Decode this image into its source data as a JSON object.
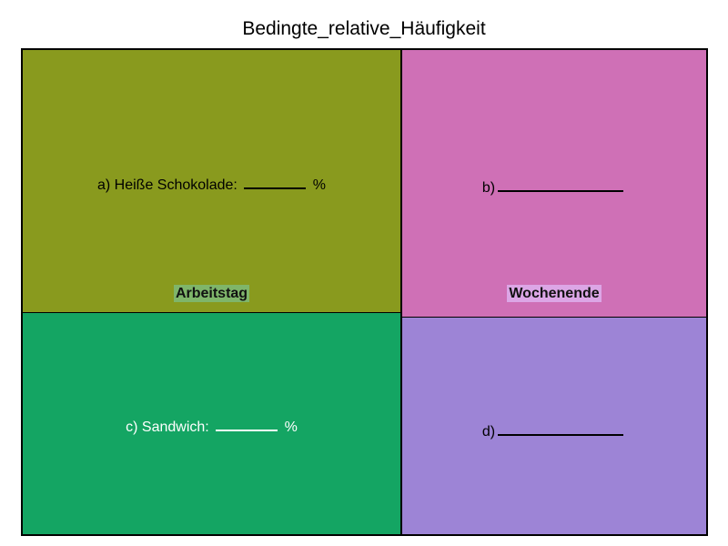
{
  "title": "Bedingte_relative_Häufigkeit",
  "colors": {
    "cell_a": "#899a1e",
    "cell_b": "#cf70b6",
    "cell_c": "#14a563",
    "cell_d": "#9d84d6",
    "label_bg_arbeitstag": "#7fb56a",
    "label_bg_wochenende": "#dca6e6"
  },
  "cells": {
    "a": {
      "prefix": "a) Heiße Schokolade:",
      "suffix": "%"
    },
    "b": {
      "prefix": "b)",
      "suffix": ""
    },
    "c": {
      "prefix": "c) Sandwich:",
      "suffix": "%"
    },
    "d": {
      "prefix": "d)",
      "suffix": ""
    }
  },
  "groups": {
    "left": "Arbeitstag",
    "right": "Wochenende"
  }
}
